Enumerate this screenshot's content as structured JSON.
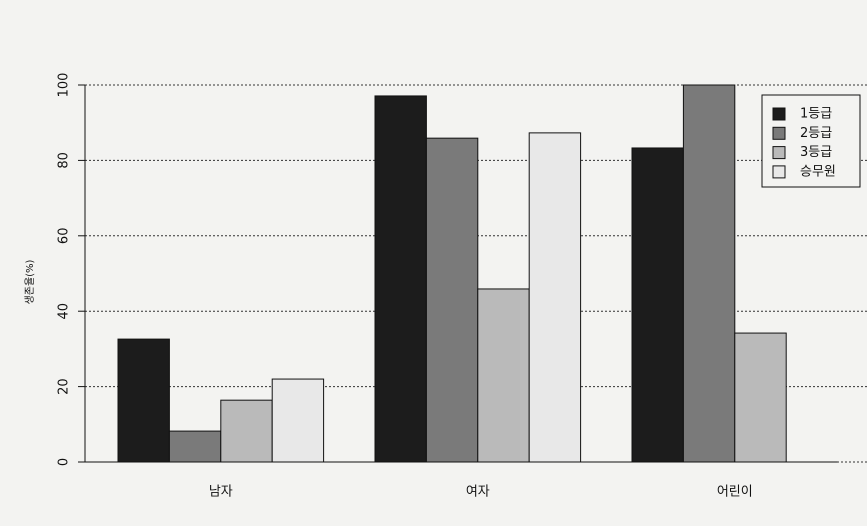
{
  "chart_data": {
    "type": "bar",
    "ylabel": "생존율(%)",
    "categories": [
      "남자",
      "여자",
      "어린이"
    ],
    "series": [
      {
        "name": "1등급",
        "color": "#1c1c1c",
        "values": [
          32.6,
          97.1,
          83.3
        ]
      },
      {
        "name": "2등급",
        "color": "#7a7a7a",
        "values": [
          8.2,
          85.9,
          100
        ]
      },
      {
        "name": "3등급",
        "color": "#bababa",
        "values": [
          16.4,
          45.9,
          34.2
        ]
      },
      {
        "name": "승무원",
        "color": "#e8e8e8",
        "values": [
          22.0,
          87.3,
          0
        ]
      }
    ],
    "ylim": [
      0,
      100
    ],
    "yticks": [
      0,
      20,
      40,
      60,
      80,
      100
    ],
    "grid": true,
    "legend": "top-right"
  }
}
